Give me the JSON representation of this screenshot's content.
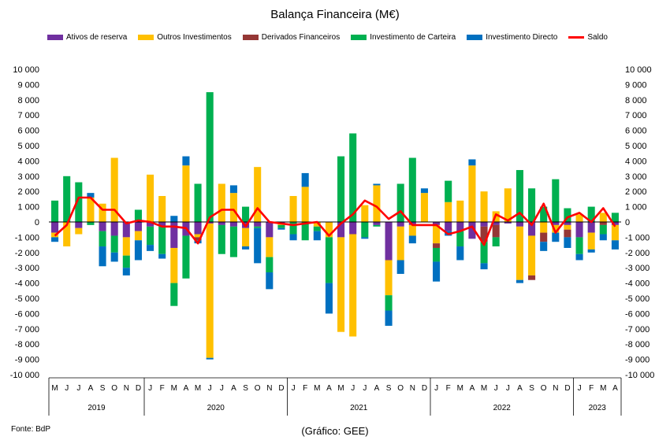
{
  "chart_data": {
    "type": "bar",
    "stacked": true,
    "title": "Balança Financeira (M€)",
    "ylim": [
      -10000,
      10000
    ],
    "yticks": [
      10000,
      9000,
      8000,
      7000,
      6000,
      5000,
      4000,
      3000,
      2000,
      1000,
      0,
      -1000,
      -2000,
      -3000,
      -4000,
      -5000,
      -6000,
      -7000,
      -8000,
      -9000,
      -10000
    ],
    "ytick_labels": [
      "10 000",
      "9 000",
      "8 000",
      "7 000",
      "6 000",
      "5 000",
      "4 000",
      "3 000",
      "2 000",
      "1 000",
      "0",
      "-1 000",
      "-2 000",
      "-3 000",
      "-4 000",
      "-5 000",
      "-6 000",
      "-7 000",
      "-8 000",
      "-9 000",
      "-10 000"
    ],
    "grid": false,
    "legend_position": "top",
    "categories": [
      "M",
      "J",
      "J",
      "A",
      "S",
      "O",
      "N",
      "D",
      "J",
      "F",
      "M",
      "A",
      "M",
      "J",
      "J",
      "A",
      "S",
      "O",
      "N",
      "D",
      "J",
      "F",
      "M",
      "A",
      "M",
      "J",
      "J",
      "A",
      "S",
      "O",
      "N",
      "D",
      "J",
      "F",
      "M",
      "A",
      "M",
      "J",
      "J",
      "A",
      "S",
      "O",
      "N",
      "D",
      "J",
      "F",
      "M",
      "A"
    ],
    "years": [
      {
        "label": "2019",
        "start": 0,
        "end": 8
      },
      {
        "label": "2020",
        "start": 8,
        "end": 20
      },
      {
        "label": "2021",
        "start": 20,
        "end": 32
      },
      {
        "label": "2022",
        "start": 32,
        "end": 44
      },
      {
        "label": "2023",
        "start": 44,
        "end": 48
      }
    ],
    "series": [
      {
        "name": "Ativos de reserva",
        "color": "#7030A0",
        "values": [
          -700,
          0,
          -400,
          0,
          -600,
          -900,
          -1000,
          -600,
          -300,
          -300,
          -1700,
          -900,
          -800,
          -100,
          -200,
          -300,
          -400,
          -300,
          -1000,
          -100,
          0,
          0,
          0,
          0,
          -1000,
          -800,
          0,
          -200,
          -2500,
          -300,
          -200,
          0,
          -200,
          -600,
          -600,
          -1100,
          -300,
          -200,
          -100,
          -300,
          -900,
          0,
          -200,
          -200,
          -1000,
          -700,
          0,
          -200
        ]
      },
      {
        "name": "Outros Investimentos",
        "color": "#FFC000",
        "values": [
          -300,
          -1600,
          -400,
          1600,
          1200,
          4200,
          -1200,
          -600,
          3100,
          1700,
          -2300,
          3700,
          -200,
          -8800,
          2500,
          1900,
          -1200,
          3600,
          -1300,
          -100,
          1700,
          2300,
          -300,
          -1000,
          -6200,
          -6700,
          1100,
          2400,
          -2300,
          -2200,
          -700,
          1900,
          -1200,
          1300,
          1400,
          3700,
          2000,
          700,
          2200,
          -3500,
          -2600,
          -700,
          -500,
          -300,
          500,
          -1100,
          600,
          -1000
        ]
      },
      {
        "name": "Derivados Financeiros",
        "color": "#953735",
        "values": [
          0,
          0,
          0,
          0,
          0,
          0,
          0,
          0,
          0,
          0,
          0,
          0,
          -200,
          0,
          0,
          0,
          0,
          0,
          0,
          0,
          0,
          0,
          0,
          0,
          0,
          0,
          0,
          0,
          0,
          0,
          0,
          0,
          -300,
          0,
          0,
          0,
          -1000,
          -800,
          0,
          0,
          -300,
          -600,
          0,
          -500,
          0,
          0,
          -200,
          0
        ]
      },
      {
        "name": "Investimento de Carteira",
        "color": "#00B050",
        "values": [
          1400,
          3000,
          2600,
          -200,
          -1000,
          -1100,
          -800,
          800,
          -1200,
          -1800,
          -1500,
          -2800,
          2500,
          8500,
          -1900,
          -2000,
          1000,
          -100,
          -1000,
          -200,
          -800,
          -1200,
          -300,
          -3000,
          4300,
          5800,
          -1000,
          -100,
          -1000,
          2500,
          4200,
          0,
          -900,
          1400,
          -1000,
          0,
          -1400,
          -600,
          0,
          3400,
          2200,
          1000,
          2800,
          900,
          -1100,
          1000,
          -600,
          600
        ]
      },
      {
        "name": "Investimento Directo",
        "color": "#0070C0",
        "values": [
          -300,
          0,
          0,
          300,
          -1300,
          -600,
          -500,
          -1300,
          -400,
          -300,
          400,
          600,
          -200,
          -100,
          0,
          500,
          -200,
          -2300,
          -1100,
          -100,
          -400,
          900,
          -600,
          -2000,
          0,
          0,
          -100,
          100,
          -1000,
          -900,
          -500,
          300,
          -1300,
          -300,
          -900,
          400,
          -400,
          0,
          0,
          -200,
          0,
          -600,
          -600,
          -700,
          -400,
          -200,
          -400,
          -600
        ]
      }
    ],
    "line_series": {
      "name": "Saldo",
      "color": "#FF0000",
      "values": [
        -900,
        -200,
        1600,
        1600,
        800,
        800,
        -100,
        100,
        0,
        -300,
        -300,
        -400,
        -1400,
        300,
        800,
        800,
        -300,
        900,
        0,
        -100,
        -200,
        -100,
        0,
        -900,
        -100,
        500,
        1400,
        1000,
        200,
        700,
        -200,
        -200,
        -200,
        -800,
        -600,
        -300,
        -1500,
        500,
        100,
        600,
        -200,
        1200,
        -700,
        300,
        600,
        0,
        900,
        -300
      ]
    },
    "source": "Fonte: BdP",
    "credit": "(Gráfico: GEE)"
  }
}
